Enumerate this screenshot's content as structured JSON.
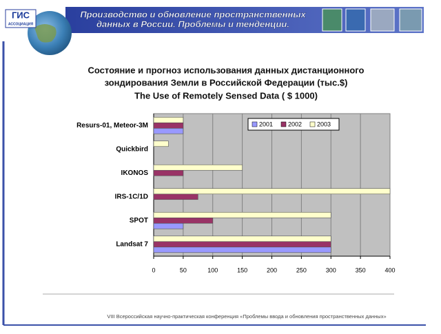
{
  "header": {
    "title_lines": [
      "Производство и обновление пространственных",
      "данных в России. Проблемы и тенденции."
    ],
    "logo_text": "ГИС",
    "logo_sub": "АССОЦИАЦИЯ"
  },
  "footer": "VIII Всероссийская научно-практическая конференция «Проблемы ввода и обновления пространственных данных»",
  "chart_data": {
    "type": "bar",
    "orientation": "horizontal",
    "title_lines": [
      "Состояние и прогноз использования данных дистанционного",
      "зондирования Земли в Российской Федерации (тыс.$)",
      "The Use of Remotely Sensed Data ( $ 1000)"
    ],
    "categories": [
      "Resurs-01, Meteor-3M",
      "Quickbird",
      "IKONOS",
      "IRS-1C/1D",
      "SPOT",
      "Landsat 7"
    ],
    "series": [
      {
        "name": "2001",
        "color": "#9999ff",
        "values": [
          50,
          0,
          0,
          0,
          50,
          300
        ]
      },
      {
        "name": "2002",
        "color": "#993366",
        "values": [
          50,
          0,
          50,
          75,
          100,
          300
        ]
      },
      {
        "name": "2003",
        "color": "#ffffcc",
        "values": [
          50,
          25,
          150,
          400,
          300,
          300
        ]
      }
    ],
    "xlim": [
      0,
      400
    ],
    "xticks": [
      0,
      50,
      100,
      150,
      200,
      250,
      300,
      350,
      400
    ],
    "grid": true,
    "legend": "top-right"
  }
}
